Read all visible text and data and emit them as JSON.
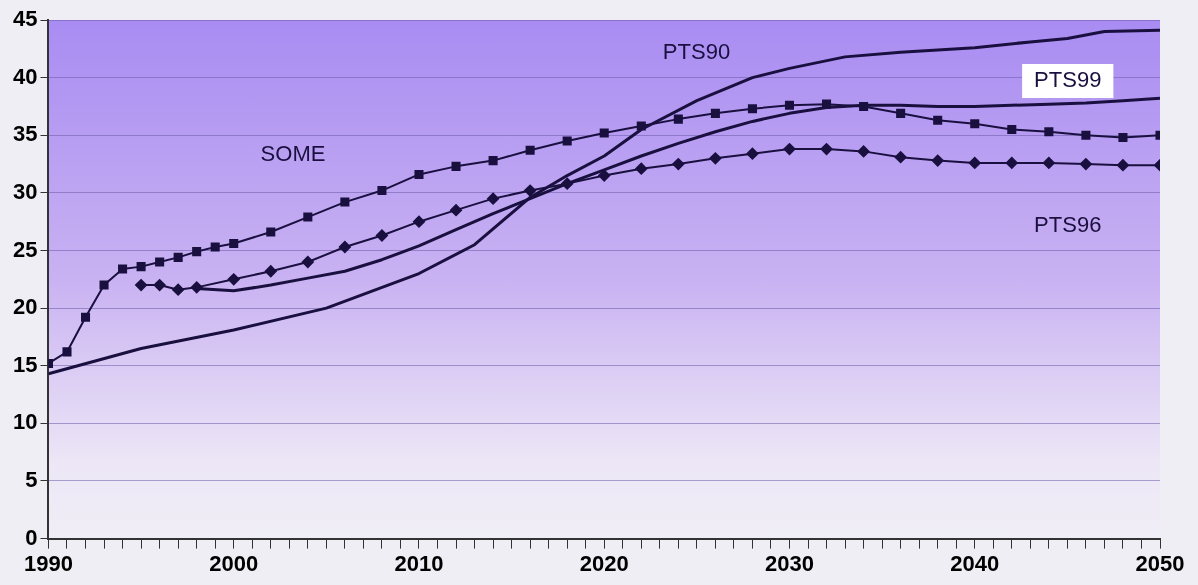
{
  "chart_data": {
    "type": "line",
    "xlim": [
      1990,
      2050
    ],
    "xticks": [
      1990,
      {
        "value": 1991,
        "label": null
      },
      {
        "value": 1992,
        "label": null
      },
      {
        "value": 1993,
        "label": null
      },
      {
        "value": 1994,
        "label": null
      },
      {
        "value": 1995,
        "label": null
      },
      {
        "value": 1996,
        "label": null
      },
      {
        "value": 1997,
        "label": null
      },
      {
        "value": 1998,
        "label": null
      },
      {
        "value": 1999,
        "label": null
      },
      2000,
      {
        "value": 2001,
        "label": null
      },
      {
        "value": 2002,
        "label": null
      },
      {
        "value": 2003,
        "label": null
      },
      {
        "value": 2004,
        "label": null
      },
      {
        "value": 2005,
        "label": null
      },
      {
        "value": 2006,
        "label": null
      },
      {
        "value": 2007,
        "label": null
      },
      {
        "value": 2008,
        "label": null
      },
      {
        "value": 2009,
        "label": null
      },
      2010,
      {
        "value": 2011,
        "label": null
      },
      {
        "value": 2012,
        "label": null
      },
      {
        "value": 2013,
        "label": null
      },
      {
        "value": 2014,
        "label": null
      },
      {
        "value": 2015,
        "label": null
      },
      {
        "value": 2016,
        "label": null
      },
      {
        "value": 2017,
        "label": null
      },
      {
        "value": 2018,
        "label": null
      },
      {
        "value": 2019,
        "label": null
      },
      2020,
      {
        "value": 2021,
        "label": null
      },
      {
        "value": 2022,
        "label": null
      },
      {
        "value": 2023,
        "label": null
      },
      {
        "value": 2024,
        "label": null
      },
      {
        "value": 2025,
        "label": null
      },
      {
        "value": 2026,
        "label": null
      },
      {
        "value": 2027,
        "label": null
      },
      {
        "value": 2028,
        "label": null
      },
      {
        "value": 2029,
        "label": null
      },
      2030,
      {
        "value": 2031,
        "label": null
      },
      {
        "value": 2032,
        "label": null
      },
      {
        "value": 2033,
        "label": null
      },
      {
        "value": 2034,
        "label": null
      },
      {
        "value": 2035,
        "label": null
      },
      {
        "value": 2036,
        "label": null
      },
      {
        "value": 2037,
        "label": null
      },
      {
        "value": 2038,
        "label": null
      },
      {
        "value": 2039,
        "label": null
      },
      2040,
      {
        "value": 2041,
        "label": null
      },
      {
        "value": 2042,
        "label": null
      },
      {
        "value": 2043,
        "label": null
      },
      {
        "value": 2044,
        "label": null
      },
      {
        "value": 2045,
        "label": null
      },
      {
        "value": 2046,
        "label": null
      },
      {
        "value": 2047,
        "label": null
      },
      {
        "value": 2048,
        "label": null
      },
      {
        "value": 2049,
        "label": null
      },
      2050
    ],
    "ylim": [
      0,
      45
    ],
    "yticks": [
      0,
      5,
      10,
      15,
      20,
      25,
      30,
      35,
      40,
      45
    ],
    "grid": "y",
    "legend": false,
    "series": [
      {
        "name": "PTS90",
        "color": "#1a1040",
        "marker": "none",
        "x": [
          1990,
          1995,
          2000,
          2005,
          2010,
          2013,
          2016,
          2018,
          2020,
          2022,
          2025,
          2028,
          2030,
          2033,
          2036,
          2040,
          2043,
          2045,
          2047,
          2050
        ],
        "values": [
          14.3,
          16.5,
          18.1,
          20,
          23,
          25.5,
          29.6,
          31.5,
          33.2,
          35.5,
          38,
          40,
          40.8,
          41.8,
          42.2,
          42.6,
          43.1,
          43.4,
          44,
          44.1
        ]
      },
      {
        "name": "SOME",
        "color": "#1a1040",
        "marker": "square",
        "x": [
          1990,
          1991,
          1992,
          1993,
          1994,
          1995,
          1996,
          1997,
          1998,
          1999,
          2000,
          2002,
          2004,
          2006,
          2008,
          2010,
          2012,
          2014,
          2016,
          2018,
          2020,
          2022,
          2024,
          2026,
          2028,
          2030,
          2032,
          2034,
          2036,
          2038,
          2040,
          2042,
          2044,
          2046,
          2048,
          2050
        ],
        "values": [
          15.2,
          16.2,
          19.2,
          22,
          23.4,
          23.6,
          24,
          24.4,
          24.9,
          25.3,
          25.6,
          26.6,
          27.9,
          29.2,
          30.2,
          31.6,
          32.3,
          32.8,
          33.7,
          34.5,
          35.2,
          35.8,
          36.4,
          36.9,
          37.3,
          37.6,
          37.7,
          37.5,
          36.9,
          36.3,
          36,
          35.5,
          35.3,
          35,
          34.8,
          35
        ]
      },
      {
        "name": "PTS96",
        "color": "#1a1040",
        "marker": "diamond",
        "x": [
          1995,
          1996,
          1997,
          1998,
          2000,
          2002,
          2004,
          2006,
          2008,
          2010,
          2012,
          2014,
          2016,
          2018,
          2020,
          2022,
          2024,
          2026,
          2028,
          2030,
          2032,
          2034,
          2036,
          2038,
          2040,
          2042,
          2044,
          2046,
          2048,
          2050
        ],
        "values": [
          22,
          22,
          21.6,
          21.8,
          22.5,
          23.2,
          24,
          25.3,
          26.3,
          27.5,
          28.5,
          29.5,
          30.2,
          30.8,
          31.5,
          32.1,
          32.5,
          33,
          33.4,
          33.8,
          33.8,
          33.6,
          33.1,
          32.8,
          32.6,
          32.6,
          32.6,
          32.5,
          32.4,
          32.4
        ]
      },
      {
        "name": "PTS99",
        "color": "#1a1040",
        "marker": "none",
        "x": [
          1998,
          2000,
          2002,
          2004,
          2006,
          2008,
          2010,
          2012,
          2014,
          2016,
          2018,
          2020,
          2022,
          2024,
          2026,
          2028,
          2030,
          2032,
          2034,
          2036,
          2038,
          2040,
          2042,
          2044,
          2046,
          2048,
          2050
        ],
        "values": [
          21.7,
          21.5,
          22,
          22.6,
          23.2,
          24.2,
          25.4,
          26.8,
          28.2,
          29.5,
          30.8,
          32,
          33.2,
          34.3,
          35.3,
          36.2,
          36.9,
          37.4,
          37.6,
          37.6,
          37.5,
          37.5,
          37.6,
          37.7,
          37.8,
          38,
          38.2
        ]
      }
    ]
  }
}
